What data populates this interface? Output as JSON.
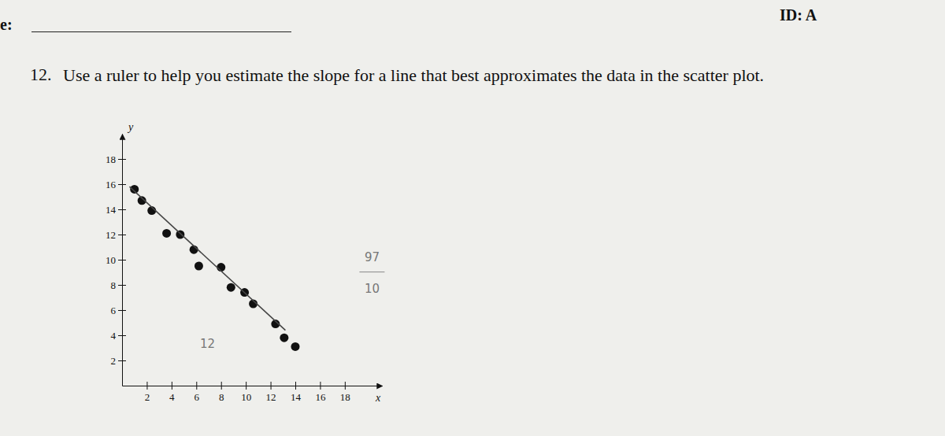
{
  "header": {
    "label": "e:",
    "id": "ID: A"
  },
  "chart_data": {
    "type": "scatter",
    "question_number": "12.",
    "title": "Use a ruler to help you estimate the slope for a line that best approximates the data in the scatter plot.",
    "x_label": "x",
    "y_label": "y",
    "xlim": [
      0,
      21
    ],
    "ylim": [
      0,
      20
    ],
    "xticks": [
      2,
      4,
      6,
      8,
      10,
      12,
      14,
      16,
      18
    ],
    "yticks": [
      2,
      4,
      6,
      8,
      10,
      12,
      14,
      16,
      18
    ],
    "grid": false,
    "series": [
      {
        "type": "scatter",
        "color": "#111111",
        "marker": "circle",
        "x": [
          1.0,
          1.6,
          2.4,
          3.6,
          4.7,
          5.8,
          6.2,
          8.0,
          8.8,
          9.9,
          10.6,
          12.4,
          13.1,
          14.0
        ],
        "values": [
          15.6,
          14.7,
          13.9,
          12.1,
          12.0,
          10.8,
          9.5,
          9.4,
          7.8,
          7.4,
          6.5,
          4.9,
          3.8,
          3.1
        ]
      },
      {
        "type": "line",
        "color": "#444444",
        "line_style": "solid",
        "x": [
          0.6,
          13.2
        ],
        "values": [
          15.8,
          4.4
        ]
      }
    ],
    "annotations": [
      {
        "text": "97",
        "x": 20.2,
        "y": 9.9
      },
      {
        "text": "10",
        "x": 20.2,
        "y": 7.4
      },
      {
        "text": "12",
        "x": 6.9,
        "y": 3.0
      }
    ]
  }
}
